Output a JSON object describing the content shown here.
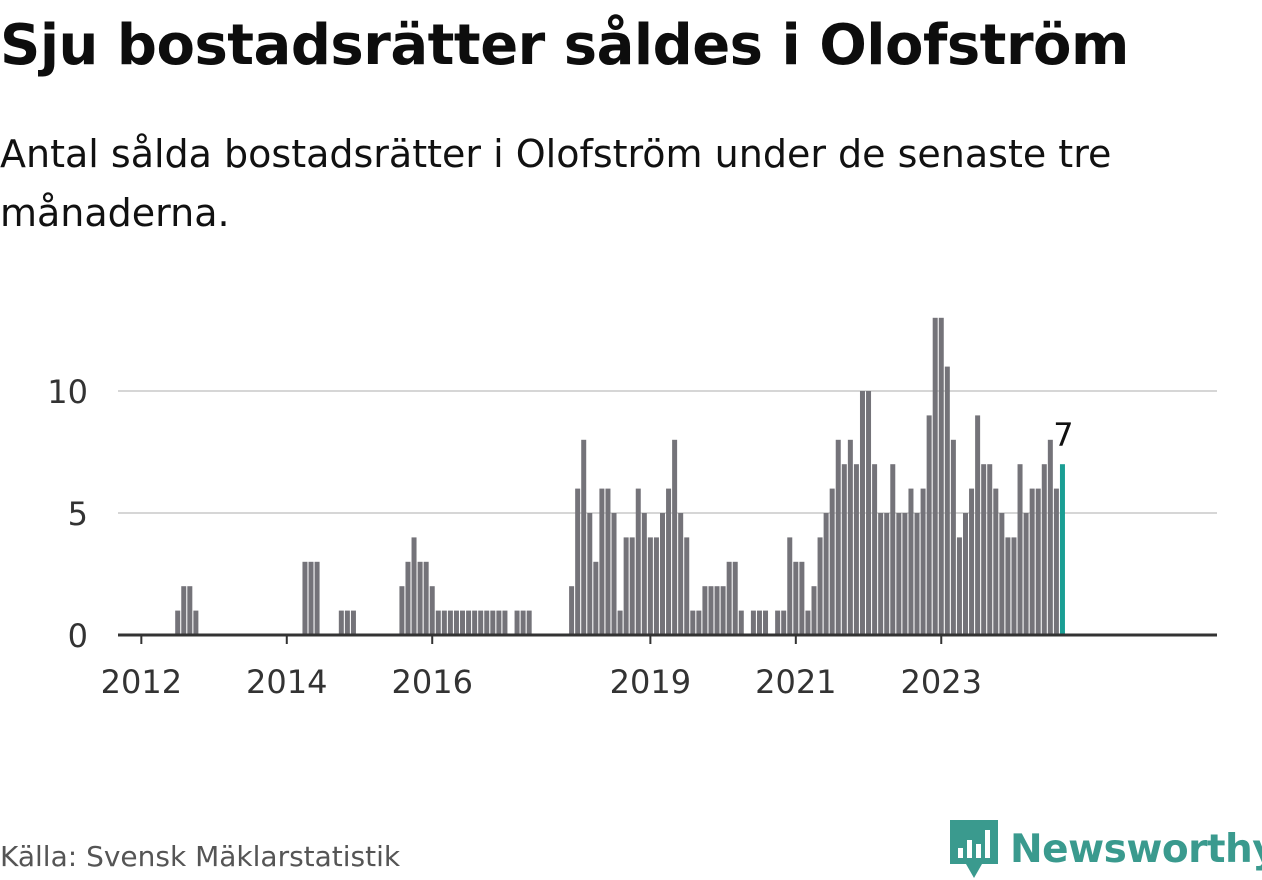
{
  "title": "Sju bostadsrätter såldes i Olofström",
  "subtitle": "Antal sålda bostadsrätter i Olofström under de senaste tre månaderna.",
  "source": "Källa: Svensk Mäklarstatistik",
  "brand": {
    "name": "Newsworthy",
    "icon": "newsworthy-logo-icon",
    "color": "#3a9a8e"
  },
  "chart_data": {
    "type": "bar",
    "x_start": "2011-10",
    "x_unit": "month",
    "values": [
      0,
      0,
      0,
      0,
      0,
      0,
      0,
      0,
      0,
      1,
      2,
      2,
      1,
      0,
      0,
      0,
      0,
      0,
      0,
      0,
      0,
      0,
      0,
      0,
      0,
      0,
      0,
      0,
      0,
      0,
      3,
      3,
      3,
      0,
      0,
      0,
      1,
      1,
      1,
      0,
      0,
      0,
      0,
      0,
      0,
      0,
      2,
      3,
      4,
      3,
      3,
      2,
      1,
      1,
      1,
      1,
      1,
      1,
      1,
      1,
      1,
      1,
      1,
      1,
      0,
      1,
      1,
      1,
      0,
      0,
      0,
      0,
      0,
      0,
      2,
      6,
      8,
      5,
      3,
      6,
      6,
      5,
      1,
      4,
      4,
      6,
      5,
      4,
      4,
      5,
      6,
      8,
      5,
      4,
      1,
      1,
      2,
      2,
      2,
      2,
      3,
      3,
      1,
      0,
      1,
      1,
      1,
      0,
      1,
      1,
      4,
      3,
      3,
      1,
      2,
      4,
      5,
      6,
      8,
      7,
      8,
      7,
      10,
      10,
      7,
      5,
      5,
      7,
      5,
      5,
      6,
      5,
      6,
      9,
      13,
      13,
      11,
      8,
      4,
      5,
      6,
      9,
      7,
      7,
      6,
      5,
      4,
      4,
      7,
      5,
      6,
      6,
      7,
      8,
      6,
      7
    ],
    "xticks": [
      "2012",
      "2014",
      "2016",
      "2019",
      "2021",
      "2023"
    ],
    "yticks": [
      0,
      5,
      10
    ],
    "ylim": [
      0,
      13
    ],
    "highlight_label": "7",
    "colors": {
      "bar": "#747379",
      "highlight": "#1a9e94",
      "grid": "#d6d6d6",
      "axis": "#333333"
    },
    "grid": true
  }
}
